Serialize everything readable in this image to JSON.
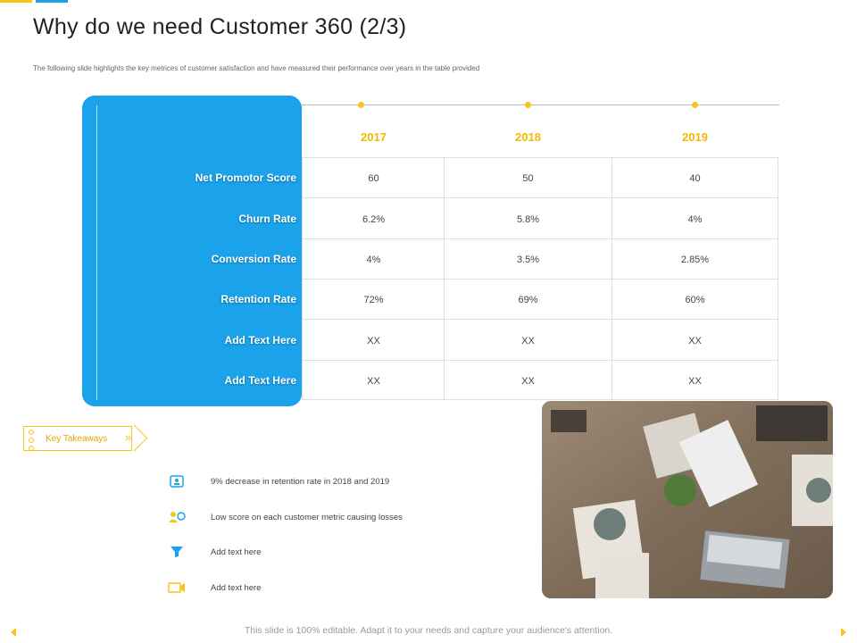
{
  "slide": {
    "title": "Why do we need Customer 360 (2/3)",
    "subtitle": "The following slide highlights the key metrices of customer satisfaction and have measured their performance over years in the table provided",
    "accent_color": "#1aa3ea",
    "highlight_color": "#f5c518"
  },
  "table": {
    "years": [
      "2017",
      "2018",
      "2019"
    ],
    "rows": [
      {
        "label": "Net Promotor Score",
        "values": [
          "60",
          "50",
          "40"
        ]
      },
      {
        "label": "Churn Rate",
        "values": [
          "6.2%",
          "5.8%",
          "4%"
        ]
      },
      {
        "label": "Conversion Rate",
        "values": [
          "4%",
          "3.5%",
          "2.85%"
        ]
      },
      {
        "label": "Retention Rate",
        "values": [
          "72%",
          "69%",
          "60%"
        ]
      },
      {
        "label": "Add Text Here",
        "values": [
          "XX",
          "XX",
          "XX"
        ]
      },
      {
        "label": "Add Text Here",
        "values": [
          "XX",
          "XX",
          "XX"
        ]
      }
    ]
  },
  "takeaways": {
    "label": "Key Takeaways",
    "items": [
      {
        "icon": "id-card-icon",
        "text": "9% decrease in retention rate in 2018 and 2019"
      },
      {
        "icon": "users-refresh-icon",
        "text": "Low score on each customer metric causing losses"
      },
      {
        "icon": "funnel-icon",
        "text": "Add text here"
      },
      {
        "icon": "video-camera-icon",
        "text": "Add text here"
      }
    ]
  },
  "footer": {
    "text": "This slide is 100% editable. Adapt it to your needs and capture your audience's attention."
  }
}
